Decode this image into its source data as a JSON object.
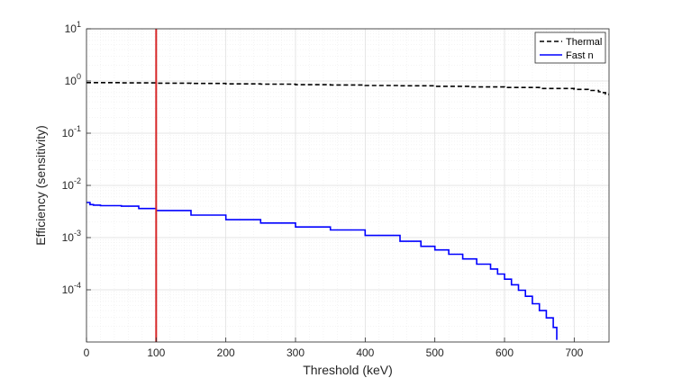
{
  "chart_data": {
    "type": "line",
    "title": "",
    "xlabel": "Threshold (keV)",
    "ylabel": "Efficiency (sensitivity)",
    "xlim": [
      0,
      750
    ],
    "ylim": [
      1e-05,
      10
    ],
    "yscale": "log",
    "grid": true,
    "legend_position": "top-right",
    "x_ticks": [
      {
        "value": 0,
        "label": "0"
      },
      {
        "value": 100,
        "label": "100"
      },
      {
        "value": 200,
        "label": "200"
      },
      {
        "value": 300,
        "label": "300"
      },
      {
        "value": 400,
        "label": "400"
      },
      {
        "value": 500,
        "label": "500"
      },
      {
        "value": 600,
        "label": "600"
      },
      {
        "value": 700,
        "label": "700"
      }
    ],
    "y_ticks": [
      {
        "value": 0.0001,
        "base": "10",
        "exp": "-4"
      },
      {
        "value": 0.001,
        "base": "10",
        "exp": "-3"
      },
      {
        "value": 0.01,
        "base": "10",
        "exp": "-2"
      },
      {
        "value": 0.1,
        "base": "10",
        "exp": "-1"
      },
      {
        "value": 1,
        "base": "10",
        "exp": "0"
      },
      {
        "value": 10,
        "base": "10",
        "exp": "1"
      }
    ],
    "series": [
      {
        "name": "Thermal",
        "color": "#000000",
        "style": "dashed",
        "x": [
          0,
          50,
          100,
          150,
          200,
          250,
          300,
          350,
          400,
          450,
          500,
          550,
          600,
          650,
          700,
          720,
          735,
          740,
          745,
          750
        ],
        "y": [
          0.93,
          0.92,
          0.91,
          0.9,
          0.88,
          0.87,
          0.85,
          0.84,
          0.82,
          0.81,
          0.79,
          0.77,
          0.75,
          0.72,
          0.69,
          0.66,
          0.62,
          0.6,
          0.56,
          0.53
        ]
      },
      {
        "name": "Fast n",
        "color": "#0000ff",
        "style": "solid",
        "x": [
          0,
          5,
          10,
          20,
          30,
          50,
          75,
          100,
          150,
          200,
          250,
          300,
          350,
          400,
          450,
          480,
          500,
          520,
          540,
          560,
          580,
          590,
          600,
          610,
          620,
          630,
          640,
          650,
          660,
          670,
          675
        ],
        "y": [
          0.0047,
          0.0043,
          0.0042,
          0.0041,
          0.0041,
          0.004,
          0.0036,
          0.0033,
          0.0027,
          0.0022,
          0.0019,
          0.0016,
          0.0014,
          0.0011,
          0.00085,
          0.00068,
          0.00058,
          0.00048,
          0.00039,
          0.00031,
          0.00025,
          0.0002,
          0.00016,
          0.000125,
          9.8e-05,
          7.5e-05,
          5.4e-05,
          4e-05,
          2.9e-05,
          1.9e-05,
          1.1e-05
        ]
      }
    ],
    "reference_line": {
      "x": 100,
      "color": "#d62728"
    }
  }
}
